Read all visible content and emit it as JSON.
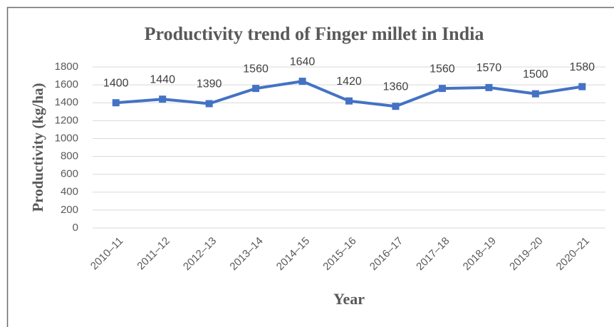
{
  "chart_data": {
    "type": "line",
    "title": "Productivity trend of Finger millet in India",
    "x_label": "Year",
    "y_label": "Productivity (kg/ha)",
    "categories": [
      "2010–11",
      "2011–12",
      "2012–13",
      "2013–14",
      "2014–15",
      "2015–16",
      "2016–17",
      "2017–18",
      "2018–19",
      "2019–20",
      "2020–21"
    ],
    "series": [
      {
        "name": "Productivity",
        "color": "#4472c4",
        "values": [
          1400,
          1440,
          1390,
          1560,
          1640,
          1420,
          1360,
          1560,
          1570,
          1500,
          1580
        ]
      }
    ],
    "ylim": [
      0,
      1800
    ],
    "yticks": [
      0,
      200,
      400,
      600,
      800,
      1000,
      1200,
      1400,
      1600,
      1800
    ],
    "grid": true,
    "data_labels": true
  }
}
